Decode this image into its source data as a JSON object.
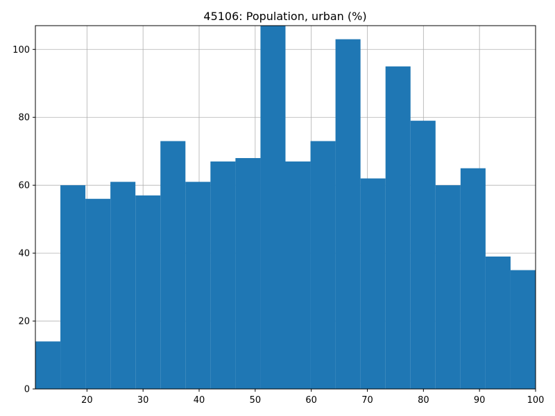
{
  "chart_data": {
    "type": "bar",
    "title": "45106: Population, urban (%)",
    "xlabel": "",
    "ylabel": "",
    "xlim": [
      10.8,
      100
    ],
    "ylim": [
      0,
      107
    ],
    "grid": true,
    "bar_color": "#1f77b4",
    "bins": [
      {
        "x0": 10.8,
        "x1": 15.26,
        "count": 14
      },
      {
        "x0": 15.26,
        "x1": 19.72,
        "count": 60
      },
      {
        "x0": 19.72,
        "x1": 24.18,
        "count": 56
      },
      {
        "x0": 24.18,
        "x1": 28.64,
        "count": 61
      },
      {
        "x0": 28.64,
        "x1": 33.1,
        "count": 57
      },
      {
        "x0": 33.1,
        "x1": 37.56,
        "count": 73
      },
      {
        "x0": 37.56,
        "x1": 42.02,
        "count": 61
      },
      {
        "x0": 42.02,
        "x1": 46.48,
        "count": 67
      },
      {
        "x0": 46.48,
        "x1": 50.94,
        "count": 68
      },
      {
        "x0": 50.94,
        "x1": 55.4,
        "count": 110
      },
      {
        "x0": 55.4,
        "x1": 59.86,
        "count": 67
      },
      {
        "x0": 59.86,
        "x1": 64.32,
        "count": 73
      },
      {
        "x0": 64.32,
        "x1": 68.78,
        "count": 103
      },
      {
        "x0": 68.78,
        "x1": 73.24,
        "count": 62
      },
      {
        "x0": 73.24,
        "x1": 77.7,
        "count": 95
      },
      {
        "x0": 77.7,
        "x1": 82.16,
        "count": 79
      },
      {
        "x0": 82.16,
        "x1": 86.62,
        "count": 60
      },
      {
        "x0": 86.62,
        "x1": 91.08,
        "count": 65
      },
      {
        "x0": 91.08,
        "x1": 95.54,
        "count": 39
      },
      {
        "x0": 95.54,
        "x1": 100,
        "count": 35
      }
    ],
    "x_ticks": [
      20,
      30,
      40,
      50,
      60,
      70,
      80,
      90,
      100
    ],
    "y_ticks": [
      0,
      20,
      40,
      60,
      80,
      100
    ]
  }
}
